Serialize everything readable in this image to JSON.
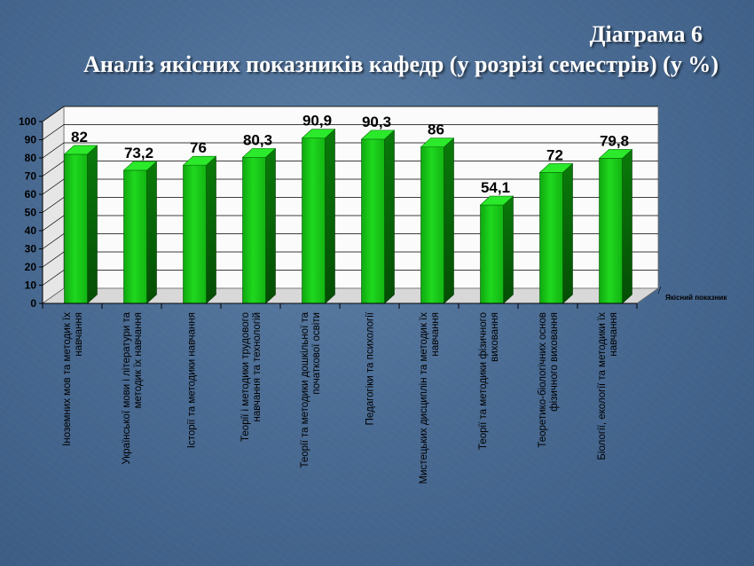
{
  "heading": {
    "line1": "Діаграма 6",
    "line2": "Аналіз якісних показників кафедр (у розрізі семестрів) (у %)"
  },
  "chart_data": {
    "type": "bar",
    "title": "Аналіз якісних показників кафедр (у розрізі семестрів) (у %)",
    "categories": [
      [
        "Іноземних мов та методик їх",
        "навчання"
      ],
      [
        "Української мови і літератури та",
        "методик їх навчання"
      ],
      [
        "Історії та методики навчання"
      ],
      [
        "Теорії і методики трудового",
        "навчання та технологій"
      ],
      [
        "Теорії та методики дошкільної та",
        "початкової освіти"
      ],
      [
        "Педагогіки та психології"
      ],
      [
        "Мистецьких дисциплін та методик їх",
        "навчання"
      ],
      [
        "Теорії та методики фізичного",
        "виховання"
      ],
      [
        "Теоретико-біологічних основ",
        "фізичного виховання"
      ],
      [
        "Біології, екології та методики їх",
        "навчання"
      ]
    ],
    "series": [
      {
        "name": "Якісний показник",
        "values": [
          82,
          73.2,
          76,
          80.3,
          90.9,
          90.3,
          86,
          54.1,
          72,
          79.8
        ],
        "labels": [
          "82",
          "73,2",
          "76",
          "80,3",
          "90,9",
          "90,3",
          "86",
          "54,1",
          "72",
          "79,8"
        ]
      }
    ],
    "ylim": [
      0,
      100
    ],
    "yticks": [
      "0",
      "10",
      "20",
      "30",
      "40",
      "50",
      "60",
      "70",
      "80",
      "90",
      "100"
    ],
    "grid": true,
    "legend_position": "right",
    "colors": {
      "bar_front": "#1fd81f",
      "bar_side": "#0a7a0a",
      "bar_top": "#2bea2b",
      "wall": "#ffffff"
    }
  }
}
